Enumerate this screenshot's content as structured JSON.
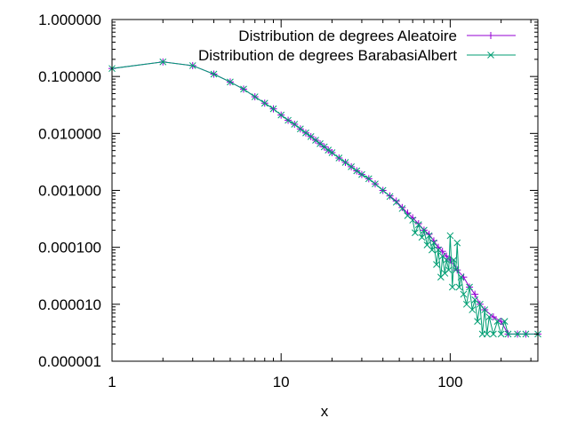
{
  "chart_data": {
    "type": "line",
    "xlabel": "x",
    "ylabel": "",
    "xscale": "log",
    "yscale": "log",
    "xlim": [
      1,
      330
    ],
    "ylim": [
      1e-06,
      1
    ],
    "x_ticks": [
      {
        "value": 1,
        "label": "1"
      },
      {
        "value": 10,
        "label": "10"
      },
      {
        "value": 100,
        "label": "100"
      }
    ],
    "y_ticks": [
      {
        "value": 1,
        "label": "1.000000"
      },
      {
        "value": 0.1,
        "label": "0.100000"
      },
      {
        "value": 0.01,
        "label": "0.010000"
      },
      {
        "value": 0.001,
        "label": "0.001000"
      },
      {
        "value": 0.0001,
        "label": "0.000100"
      },
      {
        "value": 1e-05,
        "label": "0.000010"
      },
      {
        "value": 1e-06,
        "label": "0.000001"
      }
    ],
    "grid": false,
    "legend_position": "top-right",
    "series": [
      {
        "name": "Distribution de degrees Aleatoire",
        "color": "#9400d3",
        "marker": "plus",
        "points": [
          [
            1,
            0.138
          ],
          [
            2,
            0.18
          ],
          [
            3,
            0.155
          ],
          [
            4,
            0.11
          ],
          [
            5,
            0.08
          ],
          [
            6,
            0.06
          ],
          [
            7,
            0.044
          ],
          [
            8,
            0.034
          ],
          [
            9,
            0.027
          ],
          [
            10,
            0.021
          ],
          [
            11,
            0.017
          ],
          [
            12,
            0.0145
          ],
          [
            13,
            0.012
          ],
          [
            14,
            0.0102
          ],
          [
            15,
            0.0088
          ],
          [
            16,
            0.0076
          ],
          [
            17,
            0.0066
          ],
          [
            18,
            0.0058
          ],
          [
            19,
            0.0051
          ],
          [
            20,
            0.0046
          ],
          [
            22,
            0.0037
          ],
          [
            24,
            0.0031
          ],
          [
            26,
            0.0026
          ],
          [
            28,
            0.0022
          ],
          [
            30,
            0.0019
          ],
          [
            33,
            0.0016
          ],
          [
            36,
            0.0013
          ],
          [
            40,
            0.001
          ],
          [
            44,
            0.0008
          ],
          [
            48,
            0.00065
          ],
          [
            52,
            0.0005
          ],
          [
            56,
            0.0004
          ],
          [
            60,
            0.00033
          ],
          [
            65,
            0.00026
          ],
          [
            70,
            0.0002
          ],
          [
            75,
            0.00017
          ],
          [
            80,
            0.00013
          ],
          [
            85,
            0.0001
          ],
          [
            90,
            8.5e-05
          ],
          [
            95,
            7e-05
          ],
          [
            100,
            6e-05
          ],
          [
            110,
            4e-05
          ],
          [
            120,
            3e-05
          ],
          [
            130,
            2e-05
          ],
          [
            140,
            1.5e-05
          ],
          [
            150,
            1e-05
          ],
          [
            160,
            8e-06
          ],
          [
            180,
            6e-06
          ],
          [
            200,
            5e-06
          ],
          [
            220,
            3e-06
          ],
          [
            250,
            3e-06
          ],
          [
            280,
            3e-06
          ],
          [
            330,
            3e-06
          ]
        ]
      },
      {
        "name": "Distribution de degrees BarabasiAlbert",
        "color": "#009e73",
        "marker": "cross",
        "points": [
          [
            1,
            0.138
          ],
          [
            2,
            0.18
          ],
          [
            3,
            0.155
          ],
          [
            4,
            0.11
          ],
          [
            5,
            0.08
          ],
          [
            6,
            0.06
          ],
          [
            7,
            0.044
          ],
          [
            8,
            0.034
          ],
          [
            9,
            0.027
          ],
          [
            10,
            0.021
          ],
          [
            11,
            0.017
          ],
          [
            12,
            0.0145
          ],
          [
            13,
            0.012
          ],
          [
            14,
            0.0102
          ],
          [
            15,
            0.0088
          ],
          [
            16,
            0.0076
          ],
          [
            17,
            0.0066
          ],
          [
            18,
            0.0058
          ],
          [
            19,
            0.0051
          ],
          [
            20,
            0.0046
          ],
          [
            22,
            0.0037
          ],
          [
            24,
            0.0031
          ],
          [
            26,
            0.0026
          ],
          [
            28,
            0.0022
          ],
          [
            30,
            0.0019
          ],
          [
            33,
            0.0016
          ],
          [
            36,
            0.0013
          ],
          [
            40,
            0.001
          ],
          [
            44,
            0.00078
          ],
          [
            48,
            0.00062
          ],
          [
            52,
            0.00048
          ],
          [
            56,
            0.00036
          ],
          [
            60,
            0.0003
          ],
          [
            62,
            0.00018
          ],
          [
            65,
            0.00025
          ],
          [
            68,
            0.00015
          ],
          [
            70,
            0.0002
          ],
          [
            73,
            0.00011
          ],
          [
            75,
            0.00016
          ],
          [
            78,
            9e-05
          ],
          [
            80,
            0.00012
          ],
          [
            83,
            5e-05
          ],
          [
            85,
            9e-05
          ],
          [
            88,
            3e-05
          ],
          [
            90,
            7e-05
          ],
          [
            93,
            3.5e-05
          ],
          [
            95,
            6e-05
          ],
          [
            98,
            4e-05
          ],
          [
            100,
            0.00016
          ],
          [
            103,
            2e-05
          ],
          [
            105,
            6e-05
          ],
          [
            108,
            4e-05
          ],
          [
            110,
            0.00012
          ],
          [
            113,
            2e-05
          ],
          [
            116,
            3e-05
          ],
          [
            120,
            1.5e-05
          ],
          [
            125,
            1e-05
          ],
          [
            130,
            2e-05
          ],
          [
            135,
            8e-06
          ],
          [
            140,
            1.2e-05
          ],
          [
            145,
            5e-06
          ],
          [
            150,
            1e-05
          ],
          [
            155,
            3e-06
          ],
          [
            160,
            8e-06
          ],
          [
            165,
            3e-06
          ],
          [
            170,
            6e-06
          ],
          [
            180,
            3e-06
          ],
          [
            190,
            5e-06
          ],
          [
            200,
            3e-06
          ],
          [
            210,
            5e-06
          ],
          [
            220,
            3e-06
          ],
          [
            250,
            3e-06
          ],
          [
            280,
            3e-06
          ],
          [
            330,
            3e-06
          ]
        ]
      }
    ]
  }
}
